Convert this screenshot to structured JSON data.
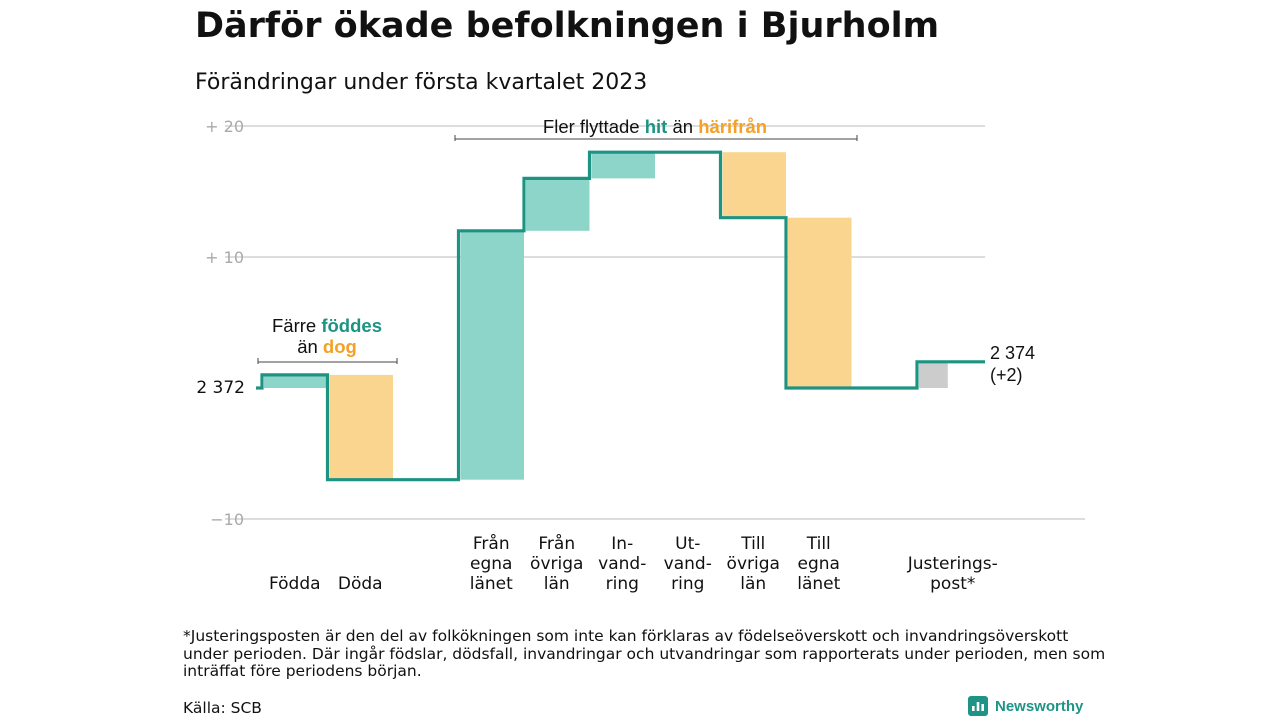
{
  "title": "Därför ökade befolkningen i Bjurholm",
  "subtitle": "Förändringar under första kvartalet 2023",
  "colors": {
    "increase": "#8dd5c9",
    "decrease": "#fad590",
    "adjustment": "#cccccc",
    "line": "#1d9483",
    "teal_text": "#1d9483",
    "orange_text": "#f4a126",
    "grid": "#dddddd",
    "tick": "#a9a9a9"
  },
  "chart_data": {
    "type": "waterfall",
    "start_value": 2372,
    "start_label": "2 372",
    "end_value": 2374,
    "end_label": "2 374",
    "end_change_label": "(+2)",
    "y_axis": {
      "domain": [
        -10,
        20
      ],
      "ticks": [
        {
          "value": 20,
          "label": "+ 20"
        },
        {
          "value": 10,
          "label": "+ 10"
        },
        {
          "value": -10,
          "label": "−10"
        }
      ]
    },
    "steps": [
      {
        "category": [
          "Födda"
        ],
        "change": 1,
        "kind": "increase"
      },
      {
        "category": [
          "Döda"
        ],
        "change": -8,
        "kind": "decrease"
      },
      {
        "category": [],
        "change": 0,
        "kind": "gap"
      },
      {
        "category": [
          "Från",
          "egna",
          "länet"
        ],
        "change": 19,
        "kind": "increase"
      },
      {
        "category": [
          "Från",
          "övriga",
          "län"
        ],
        "change": 4,
        "kind": "increase"
      },
      {
        "category": [
          "In-",
          "vand-",
          "ring"
        ],
        "change": 2,
        "kind": "increase"
      },
      {
        "category": [
          "Ut-",
          "vand-",
          "ring"
        ],
        "change": 0,
        "kind": "none"
      },
      {
        "category": [
          "Till",
          "övriga",
          "län"
        ],
        "change": -5,
        "kind": "decrease"
      },
      {
        "category": [
          "Till",
          "egna",
          "länet"
        ],
        "change": -13,
        "kind": "decrease"
      },
      {
        "category": [],
        "change": 0,
        "kind": "gap"
      },
      {
        "category": [
          "Justerings-",
          "post*"
        ],
        "change": 2,
        "kind": "adjustment"
      }
    ],
    "annotations": [
      {
        "id": "births",
        "parts": [
          {
            "text": "Färre ",
            "color": "dark"
          },
          {
            "text": "föddes",
            "color": "teal"
          },
          {
            "text": "än ",
            "color": "dark",
            "newline": true
          },
          {
            "text": "dog",
            "color": "orange"
          }
        ]
      },
      {
        "id": "migration",
        "parts": [
          {
            "text": "Fler flyttade ",
            "color": "dark"
          },
          {
            "text": "hit",
            "color": "teal"
          },
          {
            "text": " än ",
            "color": "dark"
          },
          {
            "text": "härifrån",
            "color": "orange"
          }
        ]
      }
    ]
  },
  "footnote": "*Justeringsposten är den del av folkökningen som inte kan förklaras av födelseöverskott och invandringsöverskott under perioden. Där ingår födslar, dödsfall, invandringar och utvandringar som rapporterats under perioden, men som inträffat före periodens början.",
  "source": "Källa: SCB",
  "brand": {
    "name": "Newsworthy",
    "icon": "bar-chart-logo-icon"
  }
}
